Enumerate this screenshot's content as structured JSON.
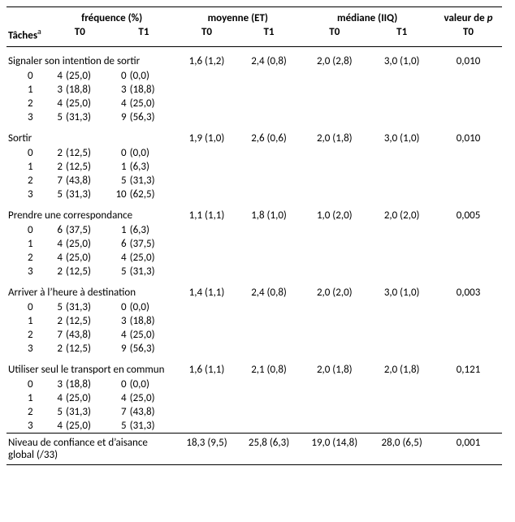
{
  "headers": {
    "g_freq": "fréquence (%)",
    "g_mean": "moyenne (ET)",
    "g_med": "médiane (IIQ)",
    "g_p_pre": "valeur de ",
    "g_p_ital": "p",
    "tasks_label_pre": "Tâches",
    "tasks_label_sup": "a",
    "t0": "T0",
    "t1": "T1"
  },
  "tasks": [
    {
      "name": "Signaler son intention de sortir",
      "mean_t0": "1,6 (1,2)",
      "mean_t1": "2,4 (0,8)",
      "med_t0": "2,0 (2,8)",
      "med_t1": "3,0 (1,0)",
      "p": "0,010",
      "levels": [
        {
          "lv": "0",
          "t0_n": "4",
          "t0_p": "(25,0)",
          "t1_n": "0",
          "t1_p": "(0,0)"
        },
        {
          "lv": "1",
          "t0_n": "3",
          "t0_p": "(18,8)",
          "t1_n": "3",
          "t1_p": "(18,8)"
        },
        {
          "lv": "2",
          "t0_n": "4",
          "t0_p": "(25,0)",
          "t1_n": "4",
          "t1_p": "(25,0)"
        },
        {
          "lv": "3",
          "t0_n": "5",
          "t0_p": "(31,3)",
          "t1_n": "9",
          "t1_p": "(56,3)"
        }
      ]
    },
    {
      "name": "Sortir",
      "mean_t0": "1,9 (1,0)",
      "mean_t1": "2,6 (0,6)",
      "med_t0": "2,0 (1,8)",
      "med_t1": "3,0 (1,0)",
      "p": "0,010",
      "levels": [
        {
          "lv": "0",
          "t0_n": "2",
          "t0_p": "(12,5)",
          "t1_n": "0",
          "t1_p": "(0,0)"
        },
        {
          "lv": "1",
          "t0_n": "2",
          "t0_p": "(12,5)",
          "t1_n": "1",
          "t1_p": "(6,3)"
        },
        {
          "lv": "2",
          "t0_n": "7",
          "t0_p": "(43,8)",
          "t1_n": "5",
          "t1_p": "(31,3)"
        },
        {
          "lv": "3",
          "t0_n": "5",
          "t0_p": "(31,3)",
          "t1_n": "10",
          "t1_p": "(62,5)"
        }
      ]
    },
    {
      "name": "Prendre une correspondance",
      "mean_t0": "1,1 (1,1)",
      "mean_t1": "1,8 (1,0)",
      "med_t0": "1,0 (2,0)",
      "med_t1": "2,0 (2,0)",
      "p": "0,005",
      "levels": [
        {
          "lv": "0",
          "t0_n": "6",
          "t0_p": "(37,5)",
          "t1_n": "1",
          "t1_p": "(6,3)"
        },
        {
          "lv": "1",
          "t0_n": "4",
          "t0_p": "(25,0)",
          "t1_n": "6",
          "t1_p": "(37,5)"
        },
        {
          "lv": "2",
          "t0_n": "4",
          "t0_p": "(25,0)",
          "t1_n": "4",
          "t1_p": "(25,0)"
        },
        {
          "lv": "3",
          "t0_n": "2",
          "t0_p": "(12,5)",
          "t1_n": "5",
          "t1_p": "(31,3)"
        }
      ]
    },
    {
      "name": "Arriver à l’heure à destination",
      "mean_t0": "1,4 (1,1)",
      "mean_t1": "2,4 (0,8)",
      "med_t0": "2,0 (2,0)",
      "med_t1": "3,0 (1,0)",
      "p": "0,003",
      "levels": [
        {
          "lv": "0",
          "t0_n": "5",
          "t0_p": "(31,3)",
          "t1_n": "0",
          "t1_p": "(0,0)"
        },
        {
          "lv": "1",
          "t0_n": "2",
          "t0_p": "(12,5)",
          "t1_n": "3",
          "t1_p": "(18,8)"
        },
        {
          "lv": "2",
          "t0_n": "7",
          "t0_p": "(43,8)",
          "t1_n": "4",
          "t1_p": "(25,0)"
        },
        {
          "lv": "3",
          "t0_n": "2",
          "t0_p": "(12,5)",
          "t1_n": "9",
          "t1_p": "(56,3)"
        }
      ]
    },
    {
      "name": "Utiliser seul le transport en commun",
      "mean_t0": "1,6 (1,1)",
      "mean_t1": "2,1 (0,8)",
      "med_t0": "2,0 (1,8)",
      "med_t1": "2,0 (1,8)",
      "p": "0,121",
      "levels": [
        {
          "lv": "0",
          "t0_n": "3",
          "t0_p": "(18,8)",
          "t1_n": "0",
          "t1_p": "(0,0)"
        },
        {
          "lv": "1",
          "t0_n": "4",
          "t0_p": "(25,0)",
          "t1_n": "4",
          "t1_p": "(25,0)"
        },
        {
          "lv": "2",
          "t0_n": "5",
          "t0_p": "(31,3)",
          "t1_n": "7",
          "t1_p": "(43,8)"
        },
        {
          "lv": "3",
          "t0_n": "4",
          "t0_p": "(25,0)",
          "t1_n": "5",
          "t1_p": "(31,3)"
        }
      ]
    }
  ],
  "footer": {
    "label": "Niveau de confiance et d’aisance global (/33)",
    "mean_t0": "18,3 (9,5)",
    "mean_t1": "25,8 (6,3)",
    "med_t0": "19,0 (14,8)",
    "med_t1": "28,0 (6,5)",
    "p": "0,001"
  }
}
